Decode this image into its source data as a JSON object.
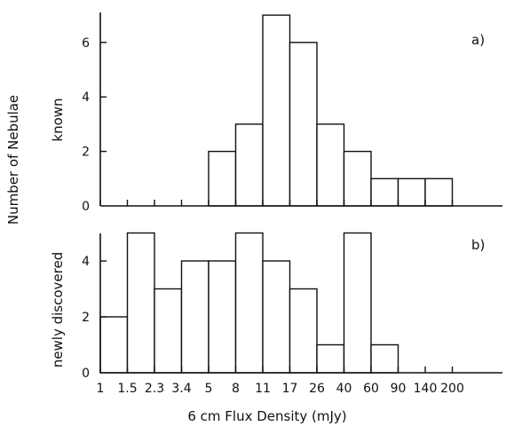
{
  "chart_data": {
    "type": "bar",
    "xlabel": "6 cm Flux Density (mJy)",
    "ylabel": "Number of Nebulae",
    "bin_edges": [
      "1",
      "1.5",
      "2.3",
      "3.4",
      "5",
      "8",
      "11",
      "17",
      "26",
      "40",
      "60",
      "90",
      "140",
      "200"
    ],
    "panels": [
      {
        "label": "a)",
        "ylabel": "known",
        "ylim": [
          0,
          7
        ],
        "yticks": [
          0,
          2,
          4,
          6
        ],
        "values": [
          0,
          0,
          0,
          0,
          2,
          3,
          7,
          6,
          3,
          2,
          1,
          1,
          1
        ]
      },
      {
        "label": "b)",
        "ylabel": "newly discovered",
        "ylim": [
          0,
          5.1
        ],
        "yticks": [
          0,
          2,
          4
        ],
        "values": [
          2,
          5,
          3,
          4,
          4,
          5,
          4,
          3,
          1,
          5,
          1,
          0,
          0
        ]
      }
    ]
  }
}
